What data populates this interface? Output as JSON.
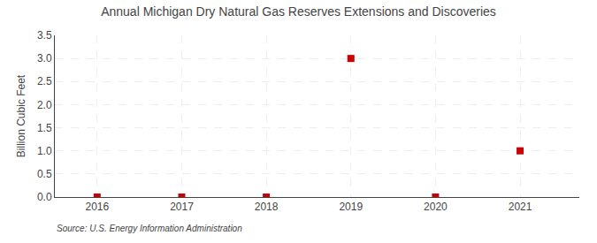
{
  "chart_data": {
    "type": "scatter",
    "title": "Annual Michigan Dry Natural Gas Reserves Extensions and Discoveries",
    "ylabel": "Billion Cubic Feet",
    "annotations": [
      "Source: U.S. Energy Information Administration"
    ],
    "x": [
      2016,
      2017,
      2018,
      2019,
      2020,
      2021
    ],
    "values": [
      0.0,
      0.0,
      0.0,
      3.0,
      0.0,
      1.0
    ],
    "color": "#cc0000",
    "marker": "square",
    "xlim": [
      2015.5,
      2021.7
    ],
    "xticks": [
      2016,
      2017,
      2018,
      2019,
      2020,
      2021
    ],
    "ylim": [
      0.0,
      3.5
    ],
    "yticks": [
      {
        "value": 0.0,
        "label": "0.0"
      },
      0.5,
      {
        "value": 1.0,
        "label": "1.0"
      },
      1.5,
      {
        "value": 2.0,
        "label": "2.0"
      },
      2.5,
      {
        "value": 3.0,
        "label": "3.0"
      },
      3.5
    ],
    "grid": true
  }
}
